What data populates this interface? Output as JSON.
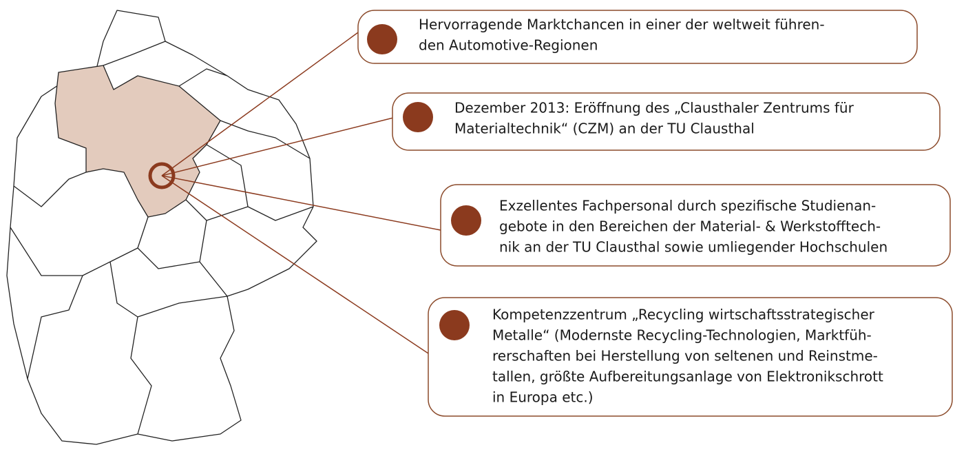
{
  "boxes": [
    {
      "lines": [
        "Hervorragende Marktchancen in einer der weltweit führen-",
        "den Automotive-Regionen"
      ]
    },
    {
      "lines": [
        "Dezember 2013: Eröffnung des „Clausthaler Zentrums für",
        "Materialtechnik“ (CZM)  an der TU Clausthal"
      ]
    },
    {
      "lines": [
        "Exzellentes Fachpersonal durch spezifische Studienan-",
        "gebote in den Bereichen der Material- & Werkstofftech-",
        "nik an der TU Clausthal sowie umliegender Hochschulen"
      ]
    },
    {
      "lines": [
        "Kompetenzzentrum „Recycling wirtschaftsstrategischer",
        "Metalle“ (Modernste Recycling-Technologien, Marktfüh-",
        "rerschaften bei Herstellung von seltenen und Reinstme-",
        "tallen, größte Aufbereitungsanlage von Elektronikschrott",
        "in Europa etc.)"
      ]
    }
  ]
}
